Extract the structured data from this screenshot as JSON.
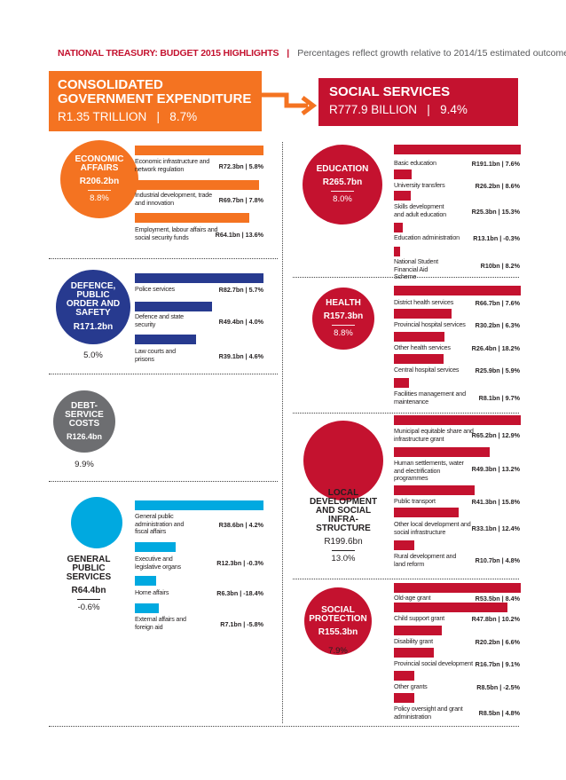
{
  "header": {
    "title": "NATIONAL TREASURY: BUDGET 2015 HIGHLIGHTS",
    "separator": "|",
    "subtitle": "Percentages reflect growth relative to 2014/15 estimated outcome"
  },
  "colors": {
    "orange": "#f47321",
    "red": "#c4122f",
    "navy": "#273a8f",
    "grey": "#6d6e71",
    "blue": "#00a9e0"
  },
  "consolidated": {
    "title_line1": "CONSOLIDATED",
    "title_line2": "GOVERNMENT EXPENDITURE",
    "value": "R1.35 TRILLION   |   8.7%"
  },
  "social_services": {
    "title": "SOCIAL SERVICES",
    "value": "R777.9 BILLION   |   9.4%"
  },
  "economic_affairs": {
    "name_lines": [
      "ECONOMIC",
      "AFFAIRS"
    ],
    "amount": "R206.2bn",
    "growth": "8.8%",
    "items": [
      {
        "label": "Economic infrastructure and network regulation",
        "value": "R72.3bn  |  5.8%",
        "amount_bn": 72.3
      },
      {
        "label": "Industrial development, trade and innovation",
        "value": "R69.7bn  |  7.8%",
        "amount_bn": 69.7
      },
      {
        "label": "Employment, labour affairs and social security funds",
        "value": "R64.1bn  |  13.6%",
        "amount_bn": 64.1
      }
    ]
  },
  "defence": {
    "name_lines": [
      "DEFENCE,",
      "PUBLIC",
      "ORDER AND",
      "SAFETY"
    ],
    "amount": "R171.2bn",
    "growth": "5.0%",
    "items": [
      {
        "label": "Police services",
        "value": "R82.7bn  |  5.7%",
        "amount_bn": 82.7
      },
      {
        "label": "Defence and state security",
        "value": "R49.4bn  |  4.0%",
        "amount_bn": 49.4
      },
      {
        "label": "Law courts and prisons",
        "value": "R39.1bn  |  4.6%",
        "amount_bn": 39.1
      }
    ]
  },
  "debt": {
    "name_lines": [
      "DEBT-",
      "SERVICE",
      "COSTS"
    ],
    "amount": "R126.4bn",
    "growth": "9.9%"
  },
  "general_public": {
    "name_lines": [
      "GENERAL",
      "PUBLIC",
      "SERVICES"
    ],
    "amount": "R64.4bn",
    "growth": "-0.6%",
    "items": [
      {
        "label": "General public administration and fiscal affairs",
        "value": "R38.6bn  |  4.2%",
        "amount_bn": 38.6
      },
      {
        "label": "Executive and legislative organs",
        "value": "R12.3bn  |  -0.3%",
        "amount_bn": 12.3
      },
      {
        "label": "Home affairs",
        "value": "R6.3bn  |  -18.4%",
        "amount_bn": 6.3
      },
      {
        "label": "External affairs and foreign aid",
        "value": "R7.1bn  |  -5.8%",
        "amount_bn": 7.1
      }
    ]
  },
  "education": {
    "name_lines": [
      "EDUCATION"
    ],
    "amount": "R265.7bn",
    "growth": "8.0%",
    "items": [
      {
        "label": "Basic education",
        "value": "R191.1bn  |  7.6%",
        "amount_bn": 191.1
      },
      {
        "label": "University transfers",
        "value": "R26.2bn  |  8.6%",
        "amount_bn": 26.2
      },
      {
        "label": "Skills development and adult education",
        "value": "R25.3bn  |  15.3%",
        "amount_bn": 25.3
      },
      {
        "label": "Education administration",
        "value": "R13.1bn  |  -0.3%",
        "amount_bn": 13.1
      },
      {
        "label": "National Student Financial Aid Scheme",
        "value": "R10bn  |  8.2%",
        "amount_bn": 10
      }
    ]
  },
  "health": {
    "name_lines": [
      "HEALTH"
    ],
    "amount": "R157.3bn",
    "growth": "8.8%",
    "items": [
      {
        "label": "District health services",
        "value": "R66.7bn  |  7.6%",
        "amount_bn": 66.7
      },
      {
        "label": "Provincial hospital services",
        "value": "R30.2bn  |  6.3%",
        "amount_bn": 30.2
      },
      {
        "label": "Other health services",
        "value": "R26.4bn  |  18.2%",
        "amount_bn": 26.4
      },
      {
        "label": "Central hospital services",
        "value": "R25.9bn  |  5.9%",
        "amount_bn": 25.9
      },
      {
        "label": "Facilities management and maintenance",
        "value": "R8.1bn  |  9.7%",
        "amount_bn": 8.1
      }
    ]
  },
  "local_dev": {
    "name_lines": [
      "LOCAL",
      "DEVELOPMENT",
      "AND SOCIAL",
      "INFRA-",
      "STRUCTURE"
    ],
    "amount": "R199.6bn",
    "growth": "13.0%",
    "items": [
      {
        "label": "Municipal equitable share and infrastructure grant",
        "value": "R65.2bn  |  12.9%",
        "amount_bn": 65.2
      },
      {
        "label": "Human settlements, water and electrification programmes",
        "value": "R49.3bn  |  13.2%",
        "amount_bn": 49.3
      },
      {
        "label": "Public transport",
        "value": "R41.3bn  |  15.8%",
        "amount_bn": 41.3
      },
      {
        "label": "Other local development and social infrastructure",
        "value": "R33.1bn  |  12.4%",
        "amount_bn": 33.1
      },
      {
        "label": "Rural development and land reform",
        "value": "R10.7bn  |  4.8%",
        "amount_bn": 10.7
      }
    ]
  },
  "social_protection": {
    "name_lines": [
      "SOCIAL",
      "PROTECTION"
    ],
    "amount": "R155.3bn",
    "growth": "7.9%",
    "items": [
      {
        "label": "Old-age grant",
        "value": "R53.5bn  |  8.4%",
        "amount_bn": 53.5
      },
      {
        "label": "Child support grant",
        "value": "R47.8bn  |  10.2%",
        "amount_bn": 47.8
      },
      {
        "label": "Disability grant",
        "value": "R20.2bn  |  6.6%",
        "amount_bn": 20.2
      },
      {
        "label": "Provincial social development",
        "value": "R16.7bn  |  9.1%",
        "amount_bn": 16.7
      },
      {
        "label": "Other grants",
        "value": "R8.5bn  |  -2.5%",
        "amount_bn": 8.5
      },
      {
        "label": "Policy oversight and grant administration",
        "value": "R8.5bn  |  4.8%",
        "amount_bn": 8.5
      }
    ]
  }
}
